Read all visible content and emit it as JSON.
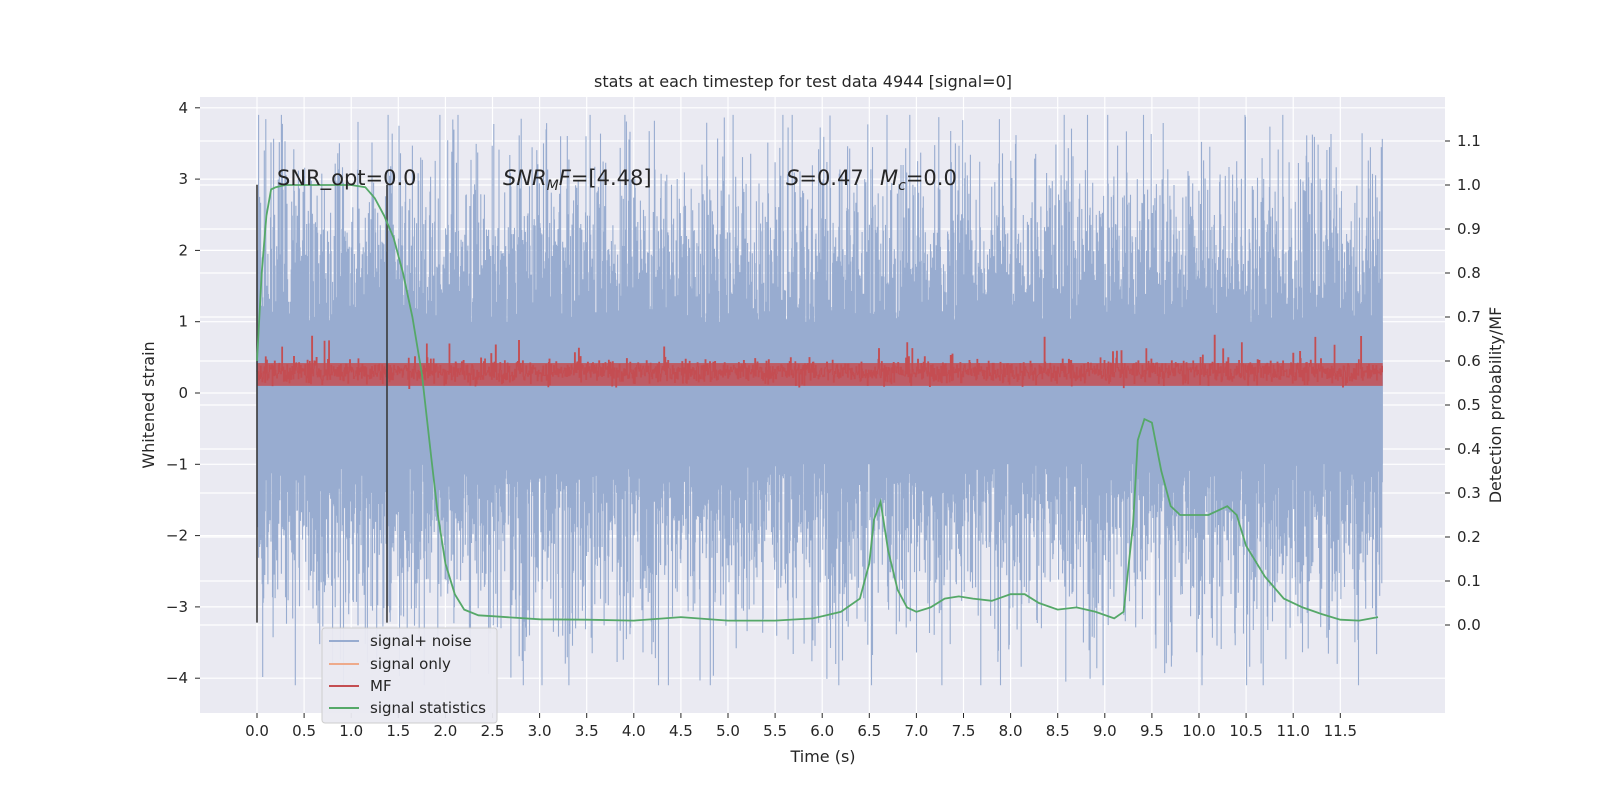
{
  "chart_data": {
    "type": "line",
    "title": "stats at each timestep for test data 4944 [signal=0]",
    "xlabel": "Time (s)",
    "ylabel": "Whitened strain",
    "y2label": "Detection probability/MF",
    "xlim": [
      -0.6,
      12.6
    ],
    "ylim": [
      -4.45,
      4.2
    ],
    "y2lim": [
      -0.2,
      1.23
    ],
    "x_ticks": [
      "0.0",
      "0.5",
      "1.0",
      "1.5",
      "2.0",
      "2.5",
      "3.0",
      "3.5",
      "4.0",
      "4.5",
      "5.0",
      "5.5",
      "6.0",
      "6.5",
      "7.0",
      "7.5",
      "8.0",
      "8.5",
      "9.0",
      "9.5",
      "10.0",
      "10.5",
      "11.0",
      "11.5"
    ],
    "y_ticks": [
      "4",
      "3",
      "2",
      "1",
      "0",
      "−1",
      "−2",
      "−3",
      "−4"
    ],
    "y2_ticks": [
      "1.1",
      "1.0",
      "0.9",
      "0.8",
      "0.7",
      "0.6",
      "0.5",
      "0.4",
      "0.3",
      "0.2",
      "0.1",
      "0.0"
    ],
    "grid": true,
    "legend_position": "lower-left",
    "vlines": [
      0.0,
      1.38
    ],
    "annotations": {
      "snr_opt": "SNR_opt=0.0",
      "snr_mf": "=[4.48]",
      "stat_label": "=0.47",
      "mc_label": "=0.0"
    },
    "series": [
      {
        "name": "signal+ noise",
        "color": "#98acd0",
        "axis": "left",
        "note": "noise band",
        "envelope": {
          "x": [
            0.0,
            11.95
          ],
          "y_min": [
            -3.3,
            -3.3
          ],
          "y_max": [
            3.2,
            3.2
          ]
        }
      },
      {
        "name": "signal only",
        "color": "#eeaa8b",
        "axis": "left",
        "values": []
      },
      {
        "name": "MF",
        "color": "#c44e52",
        "axis": "left",
        "envelope": {
          "x": [
            0.0,
            11.95
          ],
          "y_min": [
            0.0,
            0.0
          ],
          "y_max": [
            0.6,
            0.6
          ]
        }
      },
      {
        "name": "signal statistics",
        "color": "#55a868",
        "axis": "right",
        "x": [
          0.0,
          0.05,
          0.1,
          0.15,
          0.2,
          0.3,
          0.5,
          0.8,
          1.0,
          1.15,
          1.25,
          1.35,
          1.45,
          1.55,
          1.65,
          1.75,
          1.85,
          1.92,
          2.0,
          2.1,
          2.2,
          2.35,
          2.5,
          3.0,
          3.5,
          4.0,
          4.5,
          5.0,
          5.5,
          5.9,
          6.0,
          6.2,
          6.4,
          6.5,
          6.55,
          6.62,
          6.7,
          6.8,
          6.9,
          7.0,
          7.15,
          7.3,
          7.45,
          7.6,
          7.8,
          8.0,
          8.15,
          8.3,
          8.5,
          8.7,
          8.9,
          9.1,
          9.2,
          9.3,
          9.35,
          9.42,
          9.5,
          9.6,
          9.7,
          9.8,
          9.9,
          10.0,
          10.1,
          10.3,
          10.4,
          10.5,
          10.7,
          10.9,
          11.1,
          11.3,
          11.5,
          11.7,
          11.9
        ],
        "y": [
          0.6,
          0.8,
          0.93,
          0.99,
          0.995,
          1.0,
          1.0,
          1.0,
          1.0,
          0.995,
          0.97,
          0.93,
          0.88,
          0.8,
          0.7,
          0.57,
          0.38,
          0.25,
          0.14,
          0.07,
          0.035,
          0.022,
          0.02,
          0.013,
          0.012,
          0.01,
          0.018,
          0.01,
          0.01,
          0.015,
          0.02,
          0.03,
          0.06,
          0.14,
          0.24,
          0.28,
          0.17,
          0.08,
          0.04,
          0.03,
          0.04,
          0.06,
          0.065,
          0.06,
          0.055,
          0.07,
          0.07,
          0.05,
          0.035,
          0.04,
          0.03,
          0.015,
          0.03,
          0.23,
          0.42,
          0.468,
          0.46,
          0.35,
          0.27,
          0.25,
          0.25,
          0.25,
          0.25,
          0.27,
          0.25,
          0.18,
          0.11,
          0.06,
          0.04,
          0.025,
          0.012,
          0.01,
          0.018
        ]
      }
    ]
  }
}
